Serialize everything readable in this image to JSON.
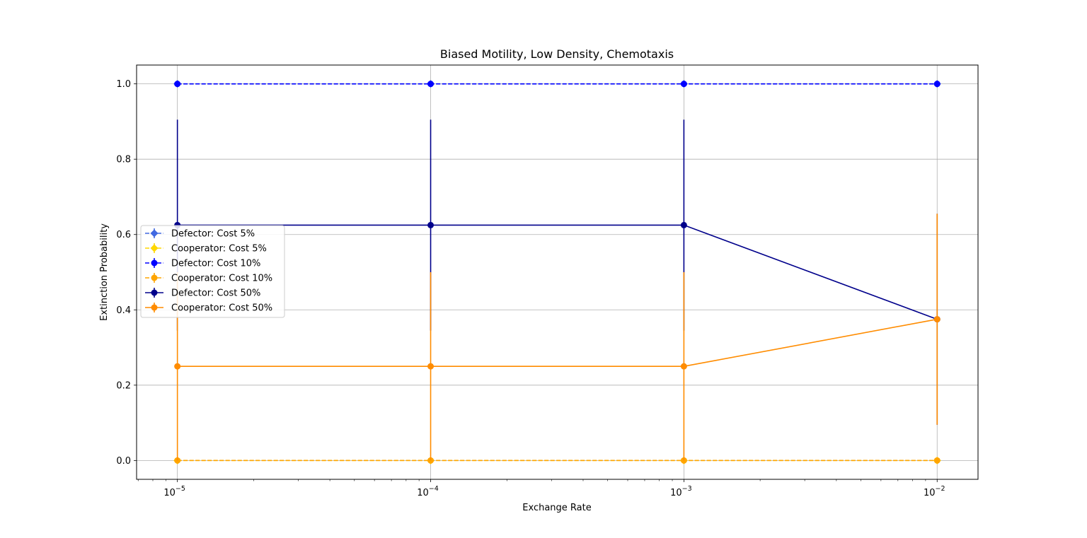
{
  "chart_data": {
    "type": "line",
    "title": "Biased Motility, Low Density, Chemotaxis",
    "xlabel": "Exchange Rate",
    "ylabel": "Extinction Probability",
    "xscale": "log",
    "x": [
      1e-05,
      0.0001,
      0.001,
      0.01
    ],
    "xticks": [
      {
        "value": 1e-05,
        "base": "10",
        "exp": "−5"
      },
      {
        "value": 0.0001,
        "base": "10",
        "exp": "−4"
      },
      {
        "value": 0.001,
        "base": "10",
        "exp": "−3"
      },
      {
        "value": 0.01,
        "base": "10",
        "exp": "−2"
      }
    ],
    "xlim": [
      6.9e-06,
      0.0145
    ],
    "ylim": [
      -0.05,
      1.05
    ],
    "yticks": [
      {
        "value": 0.0,
        "label": "0.0"
      },
      {
        "value": 0.2,
        "label": "0.2"
      },
      {
        "value": 0.4,
        "label": "0.4"
      },
      {
        "value": 0.6,
        "label": "0.6"
      },
      {
        "value": 0.8,
        "label": "0.8"
      },
      {
        "value": 1.0,
        "label": "1.0"
      }
    ],
    "grid": true,
    "legend_position": "center-left",
    "series": [
      {
        "name": "Defector: Cost 5%",
        "color": "#4169e1",
        "dash": true,
        "marker": "diamond",
        "values": [
          1.0,
          1.0,
          1.0,
          1.0
        ],
        "err": [
          0,
          0,
          0,
          0
        ]
      },
      {
        "name": "Cooperator: Cost 5%",
        "color": "#ffd700",
        "dash": true,
        "marker": "diamond",
        "values": [
          0.0,
          0.0,
          0.0,
          0.0
        ],
        "err": [
          0,
          0,
          0,
          0
        ]
      },
      {
        "name": "Defector: Cost 10%",
        "color": "#0000ff",
        "dash": true,
        "marker": "circle",
        "values": [
          1.0,
          1.0,
          1.0,
          1.0
        ],
        "err": [
          0,
          0,
          0,
          0
        ]
      },
      {
        "name": "Cooperator: Cost 10%",
        "color": "#ffa500",
        "dash": true,
        "marker": "circle",
        "values": [
          0.0,
          0.0,
          0.0,
          0.0
        ],
        "err": [
          0,
          0,
          0,
          0
        ]
      },
      {
        "name": "Defector: Cost 50%",
        "color": "#00008b",
        "dash": false,
        "marker": "circle",
        "values": [
          0.625,
          0.625,
          0.625,
          0.375
        ],
        "err": [
          0.28,
          0.28,
          0.28,
          0.28
        ]
      },
      {
        "name": "Cooperator: Cost 50%",
        "color": "#ff8c00",
        "dash": false,
        "marker": "circle",
        "values": [
          0.25,
          0.25,
          0.25,
          0.375
        ],
        "err": [
          0.25,
          0.25,
          0.25,
          0.28
        ]
      }
    ]
  }
}
